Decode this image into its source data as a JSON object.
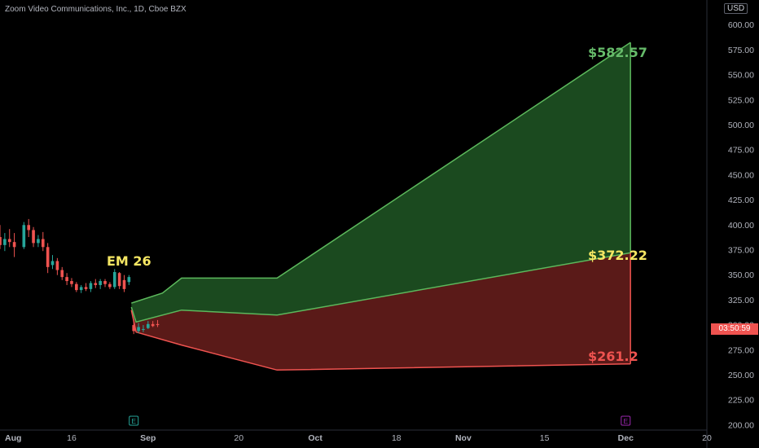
{
  "header": {
    "title": "Zoom Video Communications, Inc., 1D, Cboe BZX",
    "currency": "USD",
    "countdown": "03:50:59"
  },
  "colors": {
    "up": "#26a69a",
    "down": "#ef5350",
    "upper_band_fill": "#1b4a1f",
    "upper_band_line": "#5cb85c",
    "lower_band_fill": "#5a1a18",
    "lower_band_line": "#ef5350",
    "mid_label": "#f5e663",
    "upper_label": "#66bb6a",
    "lower_label": "#ef5350",
    "earnings_sep": "#26a69a",
    "earnings_dec": "#9c27b0"
  },
  "chart_data": {
    "type": "candlestick",
    "title": "Zoom Video Communications, Inc., 1D, Cboe BZX",
    "y_ticks": [
      200,
      225,
      250,
      275,
      300,
      325,
      350,
      375,
      400,
      425,
      450,
      475,
      500,
      525,
      550,
      575,
      600
    ],
    "y_tick_labels": [
      "200.00",
      "225.00",
      "250.00",
      "275.00",
      "300.00",
      "325.00",
      "350.00",
      "375.00",
      "400.00",
      "425.00",
      "450.00",
      "475.00",
      "500.00",
      "525.00",
      "550.00",
      "575.00",
      "600.00"
    ],
    "ylim": [
      195,
      625
    ],
    "x_ticks": [
      "Aug",
      "16",
      "Sep",
      "20",
      "Oct",
      "18",
      "Nov",
      "15",
      "Dec",
      "20"
    ],
    "xlim_days": [
      -5,
      143
    ],
    "x_tick_days": [
      -5,
      10,
      26,
      45,
      61,
      78,
      92,
      109,
      126,
      143
    ],
    "candles": [
      {
        "d": -5,
        "o": 388,
        "h": 400,
        "l": 376,
        "c": 380
      },
      {
        "d": -4,
        "o": 380,
        "h": 392,
        "l": 374,
        "c": 386
      },
      {
        "d": -3,
        "o": 386,
        "h": 396,
        "l": 378,
        "c": 383
      },
      {
        "d": -2,
        "o": 383,
        "h": 392,
        "l": 368,
        "c": 378
      },
      {
        "d": 0,
        "o": 378,
        "h": 403,
        "l": 376,
        "c": 400
      },
      {
        "d": 1,
        "o": 400,
        "h": 406,
        "l": 388,
        "c": 395
      },
      {
        "d": 2,
        "o": 395,
        "h": 398,
        "l": 378,
        "c": 382
      },
      {
        "d": 3,
        "o": 382,
        "h": 390,
        "l": 378,
        "c": 386
      },
      {
        "d": 4,
        "o": 386,
        "h": 393,
        "l": 374,
        "c": 378
      },
      {
        "d": 5,
        "o": 378,
        "h": 382,
        "l": 352,
        "c": 358
      },
      {
        "d": 6,
        "o": 360,
        "h": 370,
        "l": 356,
        "c": 364
      },
      {
        "d": 7,
        "o": 364,
        "h": 367,
        "l": 350,
        "c": 355
      },
      {
        "d": 8,
        "o": 355,
        "h": 358,
        "l": 345,
        "c": 348
      },
      {
        "d": 9,
        "o": 348,
        "h": 352,
        "l": 340,
        "c": 344
      },
      {
        "d": 10,
        "o": 344,
        "h": 347,
        "l": 338,
        "c": 341
      },
      {
        "d": 11,
        "o": 341,
        "h": 343,
        "l": 333,
        "c": 335
      },
      {
        "d": 12,
        "o": 335,
        "h": 340,
        "l": 332,
        "c": 338
      },
      {
        "d": 13,
        "o": 338,
        "h": 342,
        "l": 334,
        "c": 336
      },
      {
        "d": 14,
        "o": 336,
        "h": 344,
        "l": 333,
        "c": 342
      },
      {
        "d": 15,
        "o": 342,
        "h": 346,
        "l": 337,
        "c": 340
      },
      {
        "d": 16,
        "o": 340,
        "h": 346,
        "l": 336,
        "c": 344
      },
      {
        "d": 17,
        "o": 344,
        "h": 346,
        "l": 338,
        "c": 341
      },
      {
        "d": 18,
        "o": 341,
        "h": 343,
        "l": 336,
        "c": 338
      },
      {
        "d": 19,
        "o": 338,
        "h": 356,
        "l": 336,
        "c": 353
      },
      {
        "d": 20,
        "o": 352,
        "h": 353,
        "l": 336,
        "c": 339
      },
      {
        "d": 21,
        "o": 345,
        "h": 350,
        "l": 333,
        "c": 336
      },
      {
        "d": 22,
        "o": 343,
        "h": 350,
        "l": 340,
        "c": 348
      },
      {
        "d": 23,
        "o": 300,
        "h": 304,
        "l": 291,
        "c": 294
      },
      {
        "d": 24,
        "o": 294,
        "h": 302,
        "l": 292,
        "c": 298
      },
      {
        "d": 25,
        "o": 296,
        "h": 300,
        "l": 293,
        "c": 296
      },
      {
        "d": 26,
        "o": 297,
        "h": 304,
        "l": 296,
        "c": 301
      },
      {
        "d": 27,
        "o": 301,
        "h": 304,
        "l": 298,
        "c": 299
      },
      {
        "d": 28,
        "o": 301,
        "h": 305,
        "l": 298,
        "c": 300
      }
    ],
    "projection": {
      "upper": [
        [
          22.5,
          322
        ],
        [
          29,
          332
        ],
        [
          33,
          347
        ],
        [
          53,
          347
        ],
        [
          127,
          582.57
        ]
      ],
      "mid": [
        [
          22.5,
          318
        ],
        [
          23.5,
          303
        ],
        [
          33,
          315
        ],
        [
          53,
          310
        ],
        [
          127,
          372.22
        ]
      ],
      "lower": [
        [
          22.5,
          315
        ],
        [
          23.5,
          293
        ],
        [
          33,
          280
        ],
        [
          53,
          255
        ],
        [
          127,
          261.2
        ]
      ]
    },
    "annotations": [
      {
        "text": "EM 26",
        "role": "label"
      },
      {
        "text": "$582.57",
        "role": "upper"
      },
      {
        "text": "$372.22",
        "role": "mid"
      },
      {
        "text": "$261.2",
        "role": "lower"
      }
    ],
    "earnings_markers": [
      {
        "label": "E",
        "d": 23
      },
      {
        "label": "E",
        "d": 126
      }
    ]
  }
}
